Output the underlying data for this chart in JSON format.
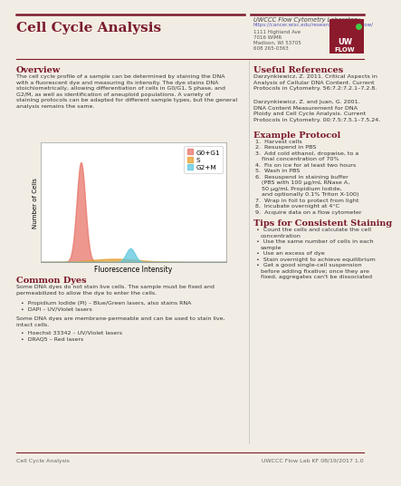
{
  "title": "Cell Cycle Analysis",
  "header_line_color": "#7B1A2D",
  "title_color": "#7B1A2D",
  "bg_color": "#F2EDE4",
  "uwccc_header": "UWCCC Flow Cytometry Laboratory",
  "uwccc_url": "https://cancer.wisc.edu/research/resources/flow/",
  "uwccc_addr1": "1111 Highland Ave",
  "uwccc_addr2": "7016 WIMR",
  "uwccc_addr3": "Madison, WI 53705",
  "uwccc_addr4": "608 265-0363",
  "overview_title": "Overview",
  "overview_text": "The cell cycle profile of a sample can be determined by staining the DNA\nwith a fluorescent dye and measuring its intensity. The dye stains DNA\nstoichiometrically, allowing differentiation of cells in G0/G1, S phase, and\nG2/M, as well as identification of aneuploid populations. A variety of\nstaining protocols can be adapted for different sample types, but the general\nanalysis remains the same.",
  "chart_xlabel": "Fluorescence Intensity",
  "chart_ylabel": "Number of Cells",
  "legend_labels": [
    "G0+G1",
    "S",
    "G2+M"
  ],
  "legend_colors": [
    "#E8756A",
    "#E8A030",
    "#5EC8E0"
  ],
  "common_dyes_title": "Common Dyes",
  "common_dyes_text1": "Some DNA dyes do not stain live cells. The sample must be fixed and\npermeabilized to allow the dye to enter the cells.",
  "common_dyes_bullet1": "Propidium Iodide (PI) – Blue/Green lasers, also stains RNA",
  "common_dyes_bullet2": "DAPI – UV/Violet lasers",
  "common_dyes_text2": "Some DNA dyes are membrane-permeable and can be used to stain live,\nintact cells.",
  "common_dyes_bullet3": "Hoechst 33342 – UV/Violet lasers",
  "common_dyes_bullet4": "DRAQ5 – Red lasers",
  "useful_refs_title": "Useful References",
  "useful_refs_text1": "Darzynkiewicz, Z. 2011. Critical Aspects in\nAnalysis of Cellular DNA Content. Current\nProtocols in Cytometry. 56:7.2:7.2.1–7.2.8.",
  "useful_refs_text2": "Darzynkiewicz, Z. and Juan, G. 2001.\nDNA Content Measurement for DNA\nPloidy and Cell Cycle Analysis. Current\nProtocols in Cytometry. 00:7.5:7.5.1–7.5.24.",
  "example_protocol_title": "Example Protocol",
  "example_protocol_steps": [
    "Harvest cells",
    "Resuspend in PBS",
    "Add cold ethanol, dropwise, to a\nfinal concentration of 70%",
    "Fix on ice for at least two hours",
    "Wash in PBS",
    "Resuspend in staining buffer\n(PBS with 100 μg/mL RNase A,\n50 μg/mL Propidium Iodide,\nand optionally 0.1% Triton X-100)",
    "Wrap in foil to protect from light",
    "Incubate overnight at 4°C",
    "Acquire data on a flow cytometer"
  ],
  "tips_title": "Tips for Consistent Staining",
  "tips_bullets": [
    "Count the cells and calculate the cell\nconcentration",
    "Use the same number of cells in each\nsample",
    "Use an excess of dye",
    "Stain overnight to achieve equilibrium",
    "Get a good single-cell suspension\nbefore adding fixative; once they are\nfixed, aggregates can't be dissociated"
  ],
  "footer_left": "Cell Cycle Analysis",
  "footer_right": "UWCCC Flow Lab KF 08/19/2017 1.0",
  "section_title_color": "#7B1A2D",
  "body_text_color": "#333333",
  "footer_line_color": "#7B1A2D"
}
